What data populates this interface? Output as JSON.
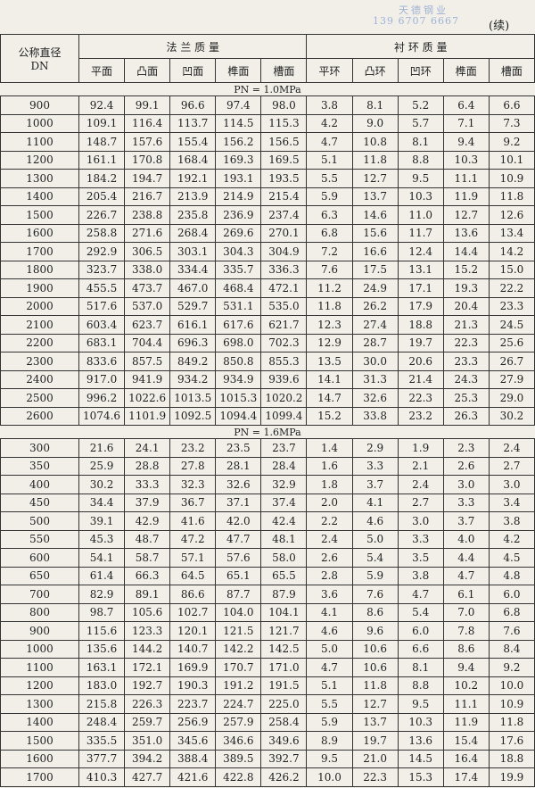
{
  "header": {
    "watermark_name": "天德钢业",
    "watermark_phone": "139 6707 6667",
    "continued": "(续)"
  },
  "table": {
    "dn_header": [
      "公称直径",
      "DN"
    ],
    "groups": [
      {
        "title": "法 兰 质 量",
        "columns": [
          "平面",
          "凸面",
          "凹面",
          "榫面",
          "槽面"
        ]
      },
      {
        "title": "衬 环 质 量",
        "columns": [
          "平环",
          "凸环",
          "凹环",
          "榫面",
          "槽面"
        ]
      }
    ],
    "sections": [
      {
        "label": "PN = 1.0MPa",
        "rows": [
          [
            "900",
            "92.4",
            "99.1",
            "96.6",
            "97.4",
            "98.0",
            "3.8",
            "8.1",
            "5.2",
            "6.4",
            "6.6"
          ],
          [
            "1000",
            "109.1",
            "116.4",
            "113.7",
            "114.5",
            "115.3",
            "4.2",
            "9.0",
            "5.7",
            "7.1",
            "7.3"
          ],
          [
            "1100",
            "148.7",
            "157.6",
            "155.4",
            "156.2",
            "156.5",
            "4.7",
            "10.8",
            "8.1",
            "9.4",
            "9.2"
          ],
          [
            "1200",
            "161.1",
            "170.8",
            "168.4",
            "169.3",
            "169.5",
            "5.1",
            "11.8",
            "8.8",
            "10.3",
            "10.1"
          ],
          [
            "1300",
            "184.2",
            "194.7",
            "192.1",
            "193.1",
            "193.5",
            "5.5",
            "12.7",
            "9.5",
            "11.1",
            "10.9"
          ],
          [
            "1400",
            "205.4",
            "216.7",
            "213.9",
            "214.9",
            "215.4",
            "5.9",
            "13.7",
            "10.3",
            "11.9",
            "11.8"
          ],
          [
            "1500",
            "226.7",
            "238.8",
            "235.8",
            "236.9",
            "237.4",
            "6.3",
            "14.6",
            "11.0",
            "12.7",
            "12.6"
          ],
          [
            "1600",
            "258.8",
            "271.6",
            "268.4",
            "269.6",
            "270.1",
            "6.8",
            "15.6",
            "11.7",
            "13.6",
            "13.4"
          ],
          [
            "1700",
            "292.9",
            "306.5",
            "303.1",
            "304.3",
            "304.9",
            "7.2",
            "16.6",
            "12.4",
            "14.4",
            "14.2"
          ],
          [
            "1800",
            "323.7",
            "338.0",
            "334.4",
            "335.7",
            "336.3",
            "7.6",
            "17.5",
            "13.1",
            "15.2",
            "15.0"
          ],
          [
            "1900",
            "455.5",
            "473.7",
            "467.0",
            "468.4",
            "472.1",
            "11.2",
            "24.9",
            "17.1",
            "19.3",
            "22.2"
          ],
          [
            "2000",
            "517.6",
            "537.0",
            "529.7",
            "531.1",
            "535.0",
            "11.8",
            "26.2",
            "17.9",
            "20.4",
            "23.3"
          ],
          [
            "2100",
            "603.4",
            "623.7",
            "616.1",
            "617.6",
            "621.7",
            "12.3",
            "27.4",
            "18.8",
            "21.3",
            "24.5"
          ],
          [
            "2200",
            "683.1",
            "704.4",
            "696.3",
            "698.0",
            "702.3",
            "12.9",
            "28.7",
            "19.7",
            "22.3",
            "25.6"
          ],
          [
            "2300",
            "833.6",
            "857.5",
            "849.2",
            "850.8",
            "855.3",
            "13.5",
            "30.0",
            "20.6",
            "23.3",
            "26.7"
          ],
          [
            "2400",
            "917.0",
            "941.9",
            "934.2",
            "934.9",
            "939.6",
            "14.1",
            "31.3",
            "21.4",
            "24.3",
            "27.9"
          ],
          [
            "2500",
            "996.2",
            "1022.6",
            "1013.5",
            "1015.3",
            "1020.2",
            "14.7",
            "32.6",
            "22.3",
            "25.3",
            "29.0"
          ],
          [
            "2600",
            "1074.6",
            "1101.9",
            "1092.5",
            "1094.4",
            "1099.4",
            "15.2",
            "33.8",
            "23.2",
            "26.3",
            "30.2"
          ]
        ]
      },
      {
        "label": "PN = 1.6MPa",
        "rows": [
          [
            "300",
            "21.6",
            "24.1",
            "23.2",
            "23.5",
            "23.7",
            "1.4",
            "2.9",
            "1.9",
            "2.3",
            "2.4"
          ],
          [
            "350",
            "25.9",
            "28.8",
            "27.8",
            "28.1",
            "28.4",
            "1.6",
            "3.3",
            "2.1",
            "2.6",
            "2.7"
          ],
          [
            "400",
            "30.2",
            "33.3",
            "32.3",
            "32.6",
            "32.9",
            "1.8",
            "3.7",
            "2.4",
            "3.0",
            "3.0"
          ],
          [
            "450",
            "34.4",
            "37.9",
            "36.7",
            "37.1",
            "37.4",
            "2.0",
            "4.1",
            "2.7",
            "3.3",
            "3.4"
          ],
          [
            "500",
            "39.1",
            "42.9",
            "41.6",
            "42.0",
            "42.4",
            "2.2",
            "4.6",
            "3.0",
            "3.7",
            "3.8"
          ],
          [
            "550",
            "45.3",
            "48.7",
            "47.2",
            "47.7",
            "48.1",
            "2.4",
            "5.0",
            "3.3",
            "4.0",
            "4.2"
          ],
          [
            "600",
            "54.1",
            "58.7",
            "57.1",
            "57.6",
            "58.0",
            "2.6",
            "5.4",
            "3.5",
            "4.4",
            "4.5"
          ],
          [
            "650",
            "61.4",
            "66.3",
            "64.5",
            "65.1",
            "65.5",
            "2.8",
            "5.9",
            "3.8",
            "4.7",
            "4.8"
          ],
          [
            "700",
            "82.9",
            "89.1",
            "86.6",
            "87.7",
            "87.9",
            "3.6",
            "7.6",
            "4.7",
            "6.1",
            "6.0"
          ],
          [
            "800",
            "98.7",
            "105.6",
            "102.7",
            "104.0",
            "104.1",
            "4.1",
            "8.6",
            "5.4",
            "7.0",
            "6.8"
          ],
          [
            "900",
            "115.6",
            "123.3",
            "120.1",
            "121.5",
            "121.7",
            "4.6",
            "9.6",
            "6.0",
            "7.8",
            "7.6"
          ],
          [
            "1000",
            "135.6",
            "144.2",
            "140.7",
            "142.2",
            "142.5",
            "5.0",
            "10.6",
            "6.6",
            "8.6",
            "8.4"
          ],
          [
            "1100",
            "163.1",
            "172.1",
            "169.9",
            "170.7",
            "171.0",
            "4.7",
            "10.6",
            "8.1",
            "9.4",
            "9.2"
          ],
          [
            "1200",
            "183.0",
            "192.7",
            "190.3",
            "191.2",
            "191.5",
            "5.1",
            "11.8",
            "8.8",
            "10.2",
            "10.0"
          ],
          [
            "1300",
            "215.8",
            "226.3",
            "223.7",
            "224.7",
            "225.0",
            "5.5",
            "12.7",
            "9.5",
            "11.1",
            "10.9"
          ],
          [
            "1400",
            "248.4",
            "259.7",
            "256.9",
            "257.9",
            "258.4",
            "5.9",
            "13.7",
            "10.3",
            "11.9",
            "11.8"
          ],
          [
            "1500",
            "335.5",
            "351.0",
            "345.6",
            "346.6",
            "349.6",
            "8.9",
            "19.7",
            "13.6",
            "15.4",
            "17.6"
          ],
          [
            "1600",
            "377.7",
            "394.2",
            "388.4",
            "389.5",
            "392.7",
            "9.5",
            "21.0",
            "14.5",
            "16.4",
            "18.8"
          ],
          [
            "1700",
            "410.3",
            "427.7",
            "421.6",
            "422.8",
            "426.2",
            "10.0",
            "22.3",
            "15.3",
            "17.4",
            "19.9"
          ]
        ]
      }
    ]
  }
}
